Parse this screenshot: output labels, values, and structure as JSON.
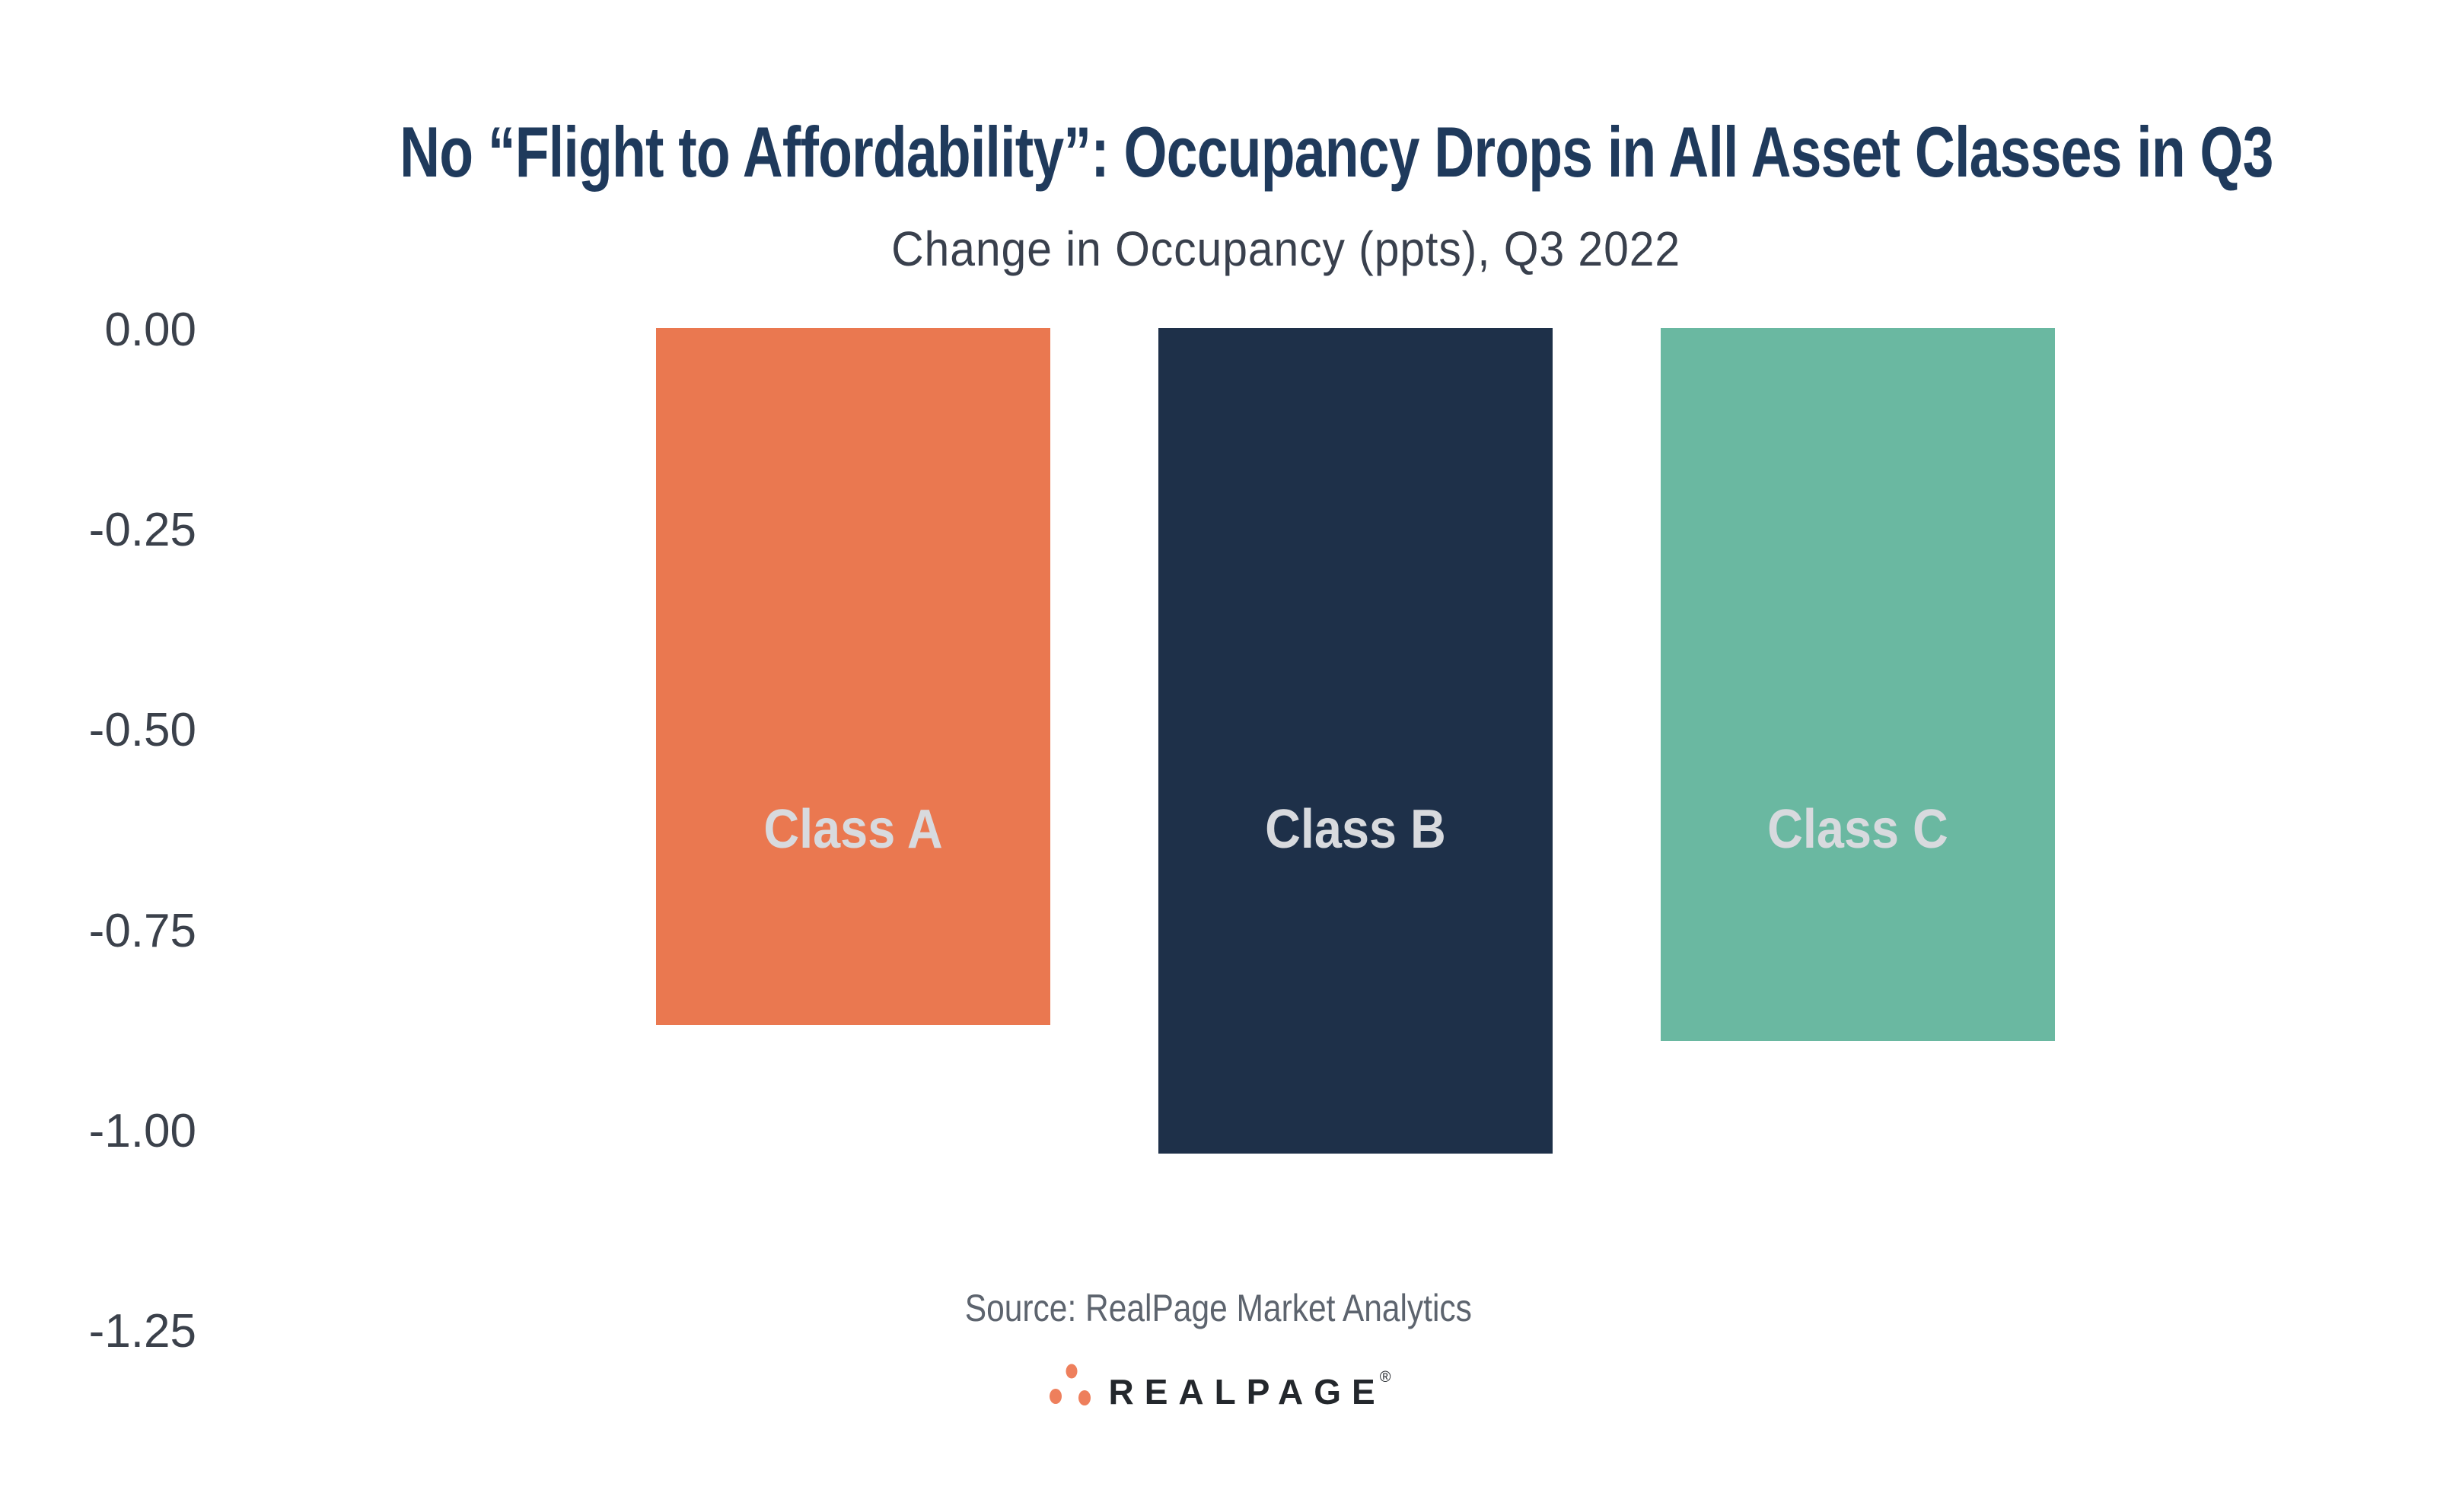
{
  "chart_data": {
    "type": "bar",
    "title": "No “Flight to Affordability”: Occupancy Drops in All Asset Classes in Q3",
    "subtitle": "Change in Occupancy (ppts), Q3 2022",
    "categories": [
      "Class A",
      "Class B",
      "Class C"
    ],
    "values": [
      -0.87,
      -1.03,
      -0.89
    ],
    "bar_colors": [
      "#ea7850",
      "#1e3049",
      "#6ab8a1"
    ],
    "bar_label_color": "#d8dade",
    "ylabel": "",
    "xlabel": "",
    "ylim": [
      -1.25,
      0
    ],
    "yticks": [
      "0.00",
      "-0.25",
      "-0.50",
      "-0.75",
      "-1.00",
      "-1.25"
    ],
    "grid": false,
    "legend": "none",
    "bar_labels_position": "inside-middle-of-plot"
  },
  "footer": {
    "source_text": "Source: RealPage Market Analytics",
    "logo_text": "REALPAGE",
    "logo_reg_mark": "®",
    "logo_dots_icon": "realpage-three-dots-icon",
    "logo_dot_color": "#ee7f5c"
  },
  "colors": {
    "title": "#1f3a5c",
    "subtitle": "#39404d",
    "tick_label": "#3b414b",
    "source": "#5d646e",
    "logo_text": "#23272c",
    "background": "#ffffff"
  }
}
